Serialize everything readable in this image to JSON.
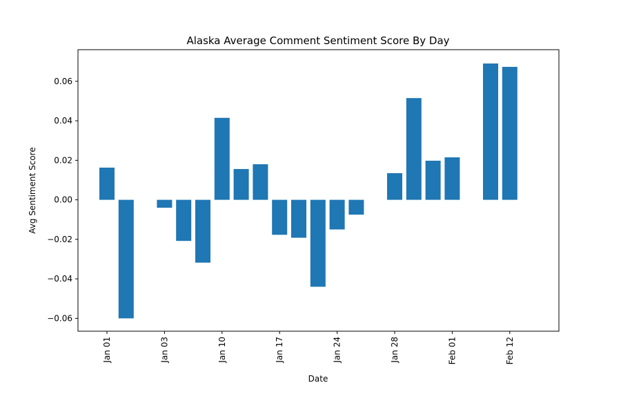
{
  "chart_data": {
    "type": "bar",
    "title": "Alaska Average Comment Sentiment Score By Day",
    "xlabel": "Date",
    "ylabel": "Avg Sentiment Score",
    "ylim": [
      -0.0665,
      0.076
    ],
    "y_ticks": [
      -0.06,
      -0.04,
      -0.02,
      0.0,
      0.02,
      0.04,
      0.06
    ],
    "y_tick_labels": [
      "−0.06",
      "−0.04",
      "−0.02",
      "0.00",
      "0.02",
      "0.04",
      "0.06"
    ],
    "x_tick_labels": [
      "Jan 01",
      "Jan 03",
      "Jan 10",
      "Jan 17",
      "Jan 24",
      "Jan 28",
      "Feb 01",
      "Feb 12"
    ],
    "x_tick_bar_index": [
      0,
      3,
      6,
      9,
      12,
      15,
      18,
      21
    ],
    "bar_slots": 24,
    "values": [
      0.0163,
      -0.06,
      null,
      -0.004,
      -0.0208,
      -0.0318,
      0.0415,
      0.0156,
      0.018,
      -0.0177,
      -0.0192,
      -0.044,
      -0.015,
      -0.0075,
      null,
      0.0135,
      0.0515,
      0.0198,
      0.0215,
      null,
      0.069,
      0.0673
    ],
    "bar_color": "#1f77b4",
    "grid": false
  }
}
